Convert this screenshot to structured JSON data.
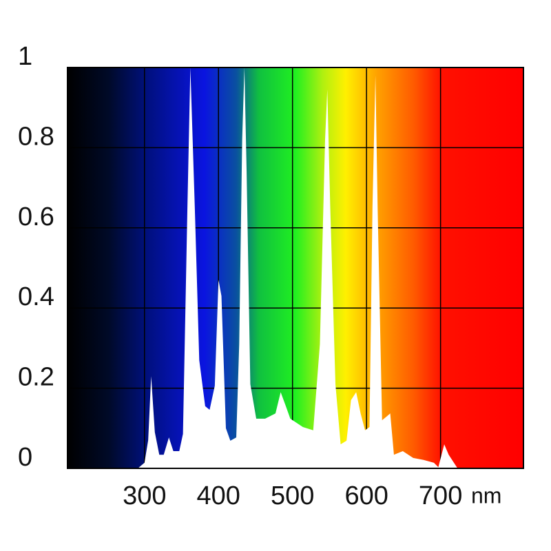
{
  "chart_data": {
    "type": "area",
    "xlabel": "nm",
    "x": [
      291,
      300,
      305,
      309,
      314,
      320,
      326,
      333,
      339,
      347,
      352,
      358,
      362,
      368,
      374,
      382,
      388,
      395,
      400,
      404,
      410,
      416,
      424,
      428,
      432,
      435,
      438,
      443,
      451,
      463,
      477,
      484,
      491,
      497,
      514,
      528,
      537,
      544,
      547,
      551,
      558,
      565,
      573,
      579,
      586,
      592,
      598,
      604,
      608,
      612,
      615,
      621,
      627,
      632,
      637,
      649,
      663,
      677,
      691,
      697,
      705,
      711,
      723
    ],
    "values": [
      0,
      0.014,
      0.07,
      0.23,
      0.09,
      0.034,
      0.034,
      0.077,
      0.043,
      0.043,
      0.086,
      0.65,
      1.0,
      0.65,
      0.27,
      0.155,
      0.146,
      0.206,
      0.47,
      0.43,
      0.1,
      0.069,
      0.077,
      0.31,
      0.82,
      1.0,
      0.74,
      0.21,
      0.124,
      0.124,
      0.137,
      0.19,
      0.155,
      0.124,
      0.103,
      0.095,
      0.31,
      0.82,
      0.945,
      0.65,
      0.21,
      0.06,
      0.069,
      0.17,
      0.19,
      0.137,
      0.095,
      0.103,
      0.65,
      0.98,
      0.65,
      0.12,
      0.129,
      0.137,
      0.034,
      0.043,
      0.026,
      0.021,
      0.014,
      0.003,
      0.06,
      0.034,
      0
    ],
    "color": "#ffffff",
    "xlim": [
      196,
      812
    ],
    "ylim": [
      0,
      1
    ],
    "xticks": [
      300,
      400,
      500,
      600,
      700
    ],
    "yticks": [
      0,
      0.2,
      0.4,
      0.6,
      0.8,
      1
    ],
    "grid": true
  }
}
